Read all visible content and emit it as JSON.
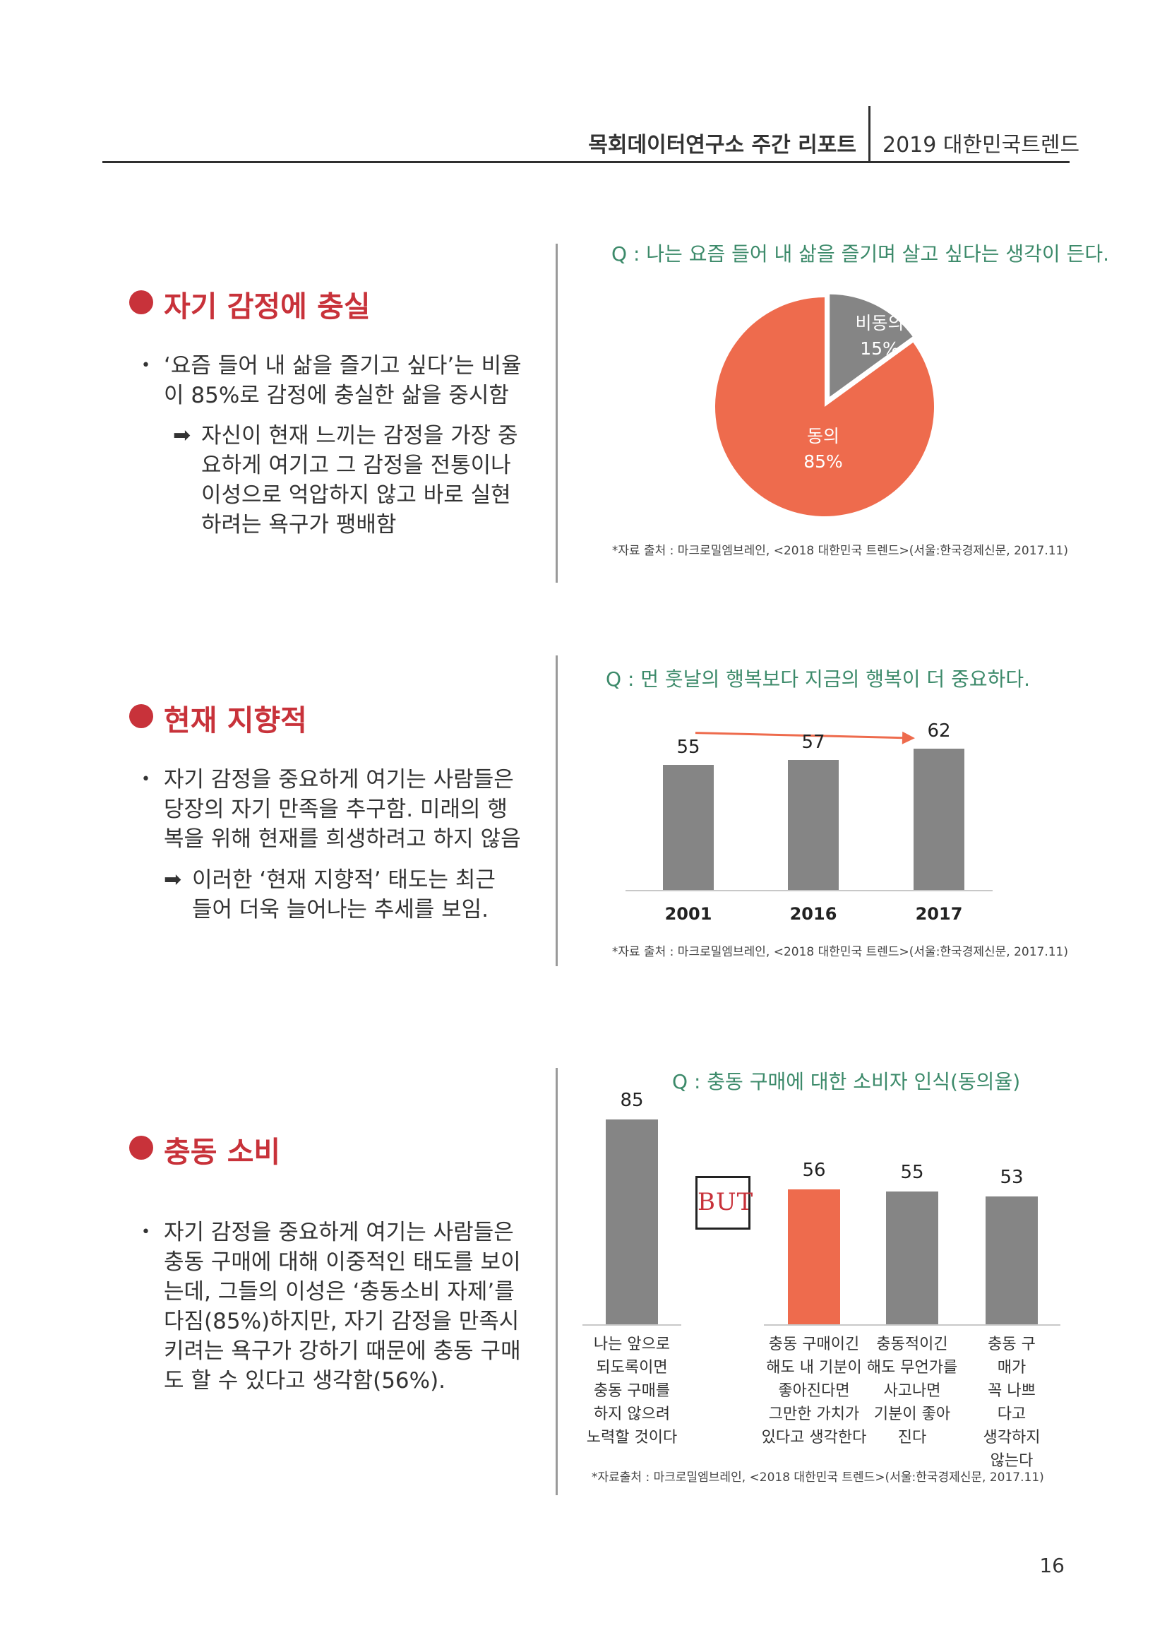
{
  "header": {
    "report_title": "목회데이터연구소 주간 리포트",
    "trend_title": "2019 대한민국트렌드"
  },
  "sections": [
    {
      "title": "자기 감정에 충실",
      "bullet": "‘요즘 들어 내 삶을 즐기고 싶다’는 비율\n이 85%로 감정에 충실한 삶을 중시함",
      "sub": "자신이 현재 느끼는 감정을 가장 중\n요하게 여기고 그 감정을 전통이나\n이성으로 억압하지 않고 바로 실현\n하려는 욕구가 팽배함"
    },
    {
      "title": "현재 지향적",
      "bullet": "자기 감정을 중요하게 여기는 사람들은\n당장의 자기 만족을 추구함. 미래의 행\n복을 위해 현재를 희생하려고 하지 않음",
      "sub": "이러한 ‘현재 지향적’ 태도는 최근\n들어 더욱 늘어나는 추세를 보임."
    },
    {
      "title": "충동 소비",
      "bullet": "자기 감정을 중요하게 여기는 사람들은\n충동 구매에 대해 이중적인 태도를 보이\n는데, 그들의 이성은 ‘충동소비 자제’를\n다짐(85%)하지만, 자기 감정을 만족시\n키려는 욕구가 강하기 때문에 충동 구매\n도 할 수 있다고 생각함(56%)."
    }
  ],
  "source_note": "*자료 출처 : 마크로밀엠브레인, <2018 대한민국 트렌드>(서울:한국경제신문, 2017.11)",
  "source_note_3": "*자료출처 : 마크로밀엠브레인, <2018 대한민국 트렌드>(서울:한국경제신문, 2017.11)",
  "page_number": "16",
  "but_label": "BUT",
  "chart_data": [
    {
      "type": "pie",
      "title": "Q : 나는 요즘 들어 내 삶을 즐기며 살고 싶다는 생각이 든다.",
      "slices": [
        {
          "label": "비동의",
          "value": 15,
          "display": "15%",
          "color": "#858585"
        },
        {
          "label": "동의",
          "value": 85,
          "display": "85%",
          "color": "#ee6b4d"
        }
      ]
    },
    {
      "type": "bar",
      "title": "Q : 먼 훗날의 행복보다 지금의 행복이 더 중요하다.",
      "categories": [
        "2001",
        "2016",
        "2017"
      ],
      "values": [
        55,
        57,
        62
      ],
      "color": "#858585",
      "trend_arrow_color": "#ee6b4d"
    },
    {
      "type": "bar",
      "title": "Q : 충동 구매에 대한 소비자 인식(동의율)",
      "categories": [
        "나는 앞으로\n되도록이면\n충동 구매를\n하지 않으려\n노력할 것이다",
        "충동 구매이긴\n해도 내 기분이\n좋아진다면\n그만한 가치가\n있다고 생각한다",
        "충동적이긴\n해도 무언가를\n사고나면\n기분이 좋아\n진다",
        "충동 구매가\n꼭 나쁘다고\n생각하지\n않는다"
      ],
      "values": [
        85,
        56,
        55,
        53
      ],
      "colors": [
        "#858585",
        "#ee6b4d",
        "#858585",
        "#858585"
      ]
    }
  ]
}
